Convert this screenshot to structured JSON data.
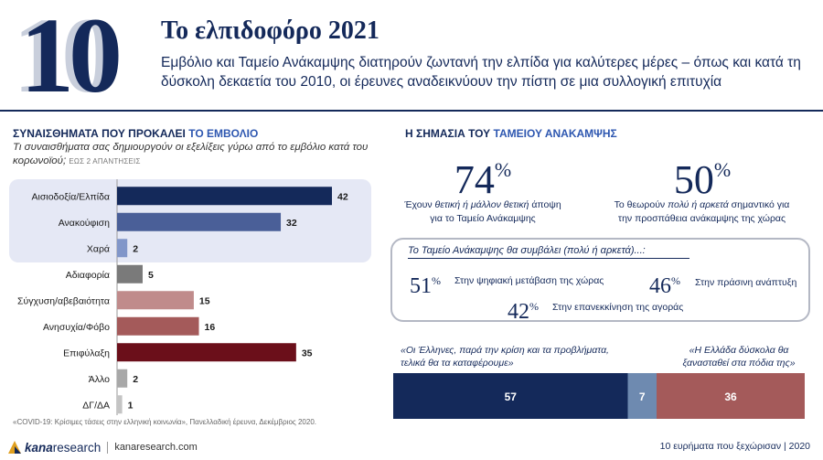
{
  "header": {
    "big_number": "10",
    "title": "Το ελπιδοφόρο 2021",
    "subtitle": "Εμβόλιο και Ταμείο Ανάκαμψης διατηρούν ζωντανή την ελπίδα για καλύτερες μέρες – όπως και κατά τη δύσκολη δεκαετία του 2010, οι έρευνες αναδεικνύουν την πίστη σε μια συλλογική επιτυχία"
  },
  "left": {
    "heading_main": "ΣΥΝΑΙΣΘΗΜΑΤΑ ΠΟΥ ΠΡΟΚΑΛΕΙ ",
    "heading_accent": "ΤΟ ΕΜΒΟΛΙΟ",
    "question": "Τι συναισθήματα σας δημιουργούν οι εξελίξεις γύρω από το εμβόλιο κατά του κορωνοϊού;",
    "question_note": "ΕΩΣ 2 ΑΠΑΝΤΗΣΕΙΣ",
    "footnote": "«COVID-19: Κρίσιμες τάσεις στην ελληνική κοινωνία», Πανελλαδική έρευνα, Δεκέμβριος 2020."
  },
  "chart_data": [
    {
      "type": "bar",
      "orientation": "horizontal",
      "title": "ΣΥΝΑΙΣΘΗΜΑΤΑ ΠΟΥ ΠΡΟΚΑΛΕΙ ΤΟ ΕΜΒΟΛΙΟ",
      "categories": [
        "Αισιοδοξία/Ελπίδα",
        "Ανακούφιση",
        "Χαρά",
        "Αδιαφορία",
        "Σύγχυση/αβεβαιότητα",
        "Ανησυχία/Φόβο",
        "Επιφύλαξη",
        "Άλλο",
        "ΔΓ/ΔΑ"
      ],
      "values": [
        42,
        32,
        2,
        5,
        15,
        16,
        35,
        2,
        1
      ],
      "colors": [
        "#14295a",
        "#4a5f98",
        "#8196c9",
        "#7a7a7a",
        "#c08b8b",
        "#a45a5a",
        "#6b0f1a",
        "#a8a8a8",
        "#c4c4c4"
      ],
      "xlim": [
        0,
        42
      ]
    },
    {
      "type": "bar",
      "orientation": "horizontal-stacked",
      "series": [
        {
          "name": "«Οι Έλληνες, παρά την κρίση και τα προβλήματα, τελικά θα τα καταφέρουμε»",
          "values": [
            57
          ],
          "color": "#14295a"
        },
        {
          "name": "",
          "values": [
            7
          ],
          "color": "#6e8ab0"
        },
        {
          "name": "«Η Ελλάδα δύσκολα θα ξανασταθεί στα πόδια της»",
          "values": [
            36
          ],
          "color": "#a45a5a"
        }
      ]
    }
  ],
  "right": {
    "heading_main": "Η ΣΗΜΑΣΙΑ ΤΟΥ ",
    "heading_accent": "ΤΑΜΕΙΟΥ ΑΝΑΚΑΜΨΗΣ",
    "stat1_value": "74",
    "stat1_caption_a": "Έχουν ",
    "stat1_caption_em": "θετική ή μάλλον θετική",
    "stat1_caption_b": " άποψη",
    "stat1_caption_c": "για το Ταμείο Ανάκαμψης",
    "stat2_value": "50",
    "stat2_caption_a": "Το θεωρούν ",
    "stat2_caption_em": "πολύ ή αρκετά",
    "stat2_caption_b": " σημαντικό για",
    "stat2_caption_c": "την προσπάθεια ανάκαμψης της χώρας",
    "percent_sign": "%",
    "contrib_title": "Το Ταμείο Ανάκαμψης θα συμβάλει (πολύ ή αρκετά)...:",
    "contrib": [
      {
        "value": "51",
        "label": "Στην ψηφιακή μετάβαση της χώρας"
      },
      {
        "value": "46",
        "label": "Στην πράσινη ανάπτυξη"
      },
      {
        "value": "42",
        "label": "Στην επανεκκίνηση της αγοράς"
      }
    ],
    "quote_left": "«Οι Έλληνες, παρά την κρίση και τα προβλήματα, τελικά θα τα καταφέρουμε»",
    "quote_right": "«Η Ελλάδα δύσκολα θα ξανασταθεί στα πόδια της»"
  },
  "footer": {
    "brand_kana": "kana",
    "brand_research": "research",
    "site": "kanaresearch.com",
    "right_text": "10 ευρήματα που ξεχώρισαν | 2020"
  }
}
